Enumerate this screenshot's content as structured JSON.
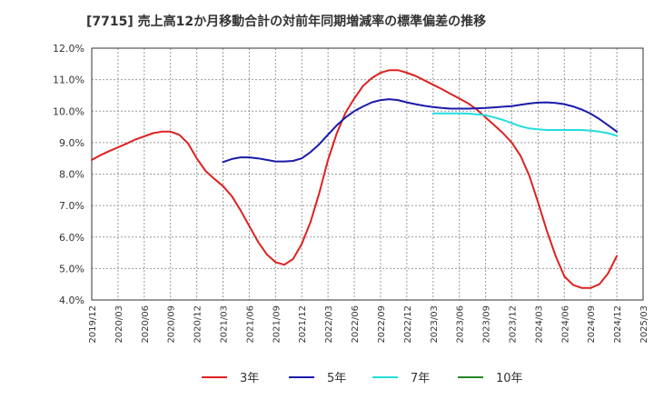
{
  "title": "[7715]  売上高12か月移動合計の対前年同期増減率の標準偏差の推移",
  "chart_data": {
    "type": "line",
    "title": "[7715]  売上高12か月移動合計の対前年同期増減率の標準偏差の推移",
    "xlabel": "",
    "ylabel": "",
    "ylim": [
      4.0,
      12.0
    ],
    "y_ticks": [
      "4.0%",
      "5.0%",
      "6.0%",
      "7.0%",
      "8.0%",
      "9.0%",
      "10.0%",
      "11.0%",
      "12.0%"
    ],
    "x_ticks": [
      "2019/12",
      "2020/03",
      "2020/06",
      "2020/09",
      "2020/12",
      "2021/03",
      "2021/06",
      "2021/09",
      "2021/12",
      "2022/03",
      "2022/06",
      "2022/09",
      "2022/12",
      "2023/03",
      "2023/06",
      "2023/09",
      "2023/12",
      "2024/03",
      "2024/06",
      "2024/09",
      "2024/12",
      "2025/03"
    ],
    "grid": true,
    "legend_position": "bottom",
    "series": [
      {
        "name": "3年",
        "color": "#dd2222",
        "points": [
          [
            "2019/12",
            8.45
          ],
          [
            "2020/01",
            8.6
          ],
          [
            "2020/02",
            8.73
          ],
          [
            "2020/03",
            8.85
          ],
          [
            "2020/04",
            8.97
          ],
          [
            "2020/05",
            9.1
          ],
          [
            "2020/06",
            9.2
          ],
          [
            "2020/07",
            9.3
          ],
          [
            "2020/08",
            9.35
          ],
          [
            "2020/09",
            9.35
          ],
          [
            "2020/10",
            9.25
          ],
          [
            "2020/11",
            8.98
          ],
          [
            "2020/12",
            8.5
          ],
          [
            "2021/01",
            8.1
          ],
          [
            "2021/02",
            7.85
          ],
          [
            "2021/03",
            7.62
          ],
          [
            "2021/04",
            7.3
          ],
          [
            "2021/05",
            6.85
          ],
          [
            "2021/06",
            6.35
          ],
          [
            "2021/07",
            5.85
          ],
          [
            "2021/08",
            5.45
          ],
          [
            "2021/09",
            5.2
          ],
          [
            "2021/10",
            5.12
          ],
          [
            "2021/11",
            5.3
          ],
          [
            "2021/12",
            5.78
          ],
          [
            "2022/01",
            6.48
          ],
          [
            "2022/02",
            7.4
          ],
          [
            "2022/03",
            8.45
          ],
          [
            "2022/04",
            9.3
          ],
          [
            "2022/05",
            9.95
          ],
          [
            "2022/06",
            10.4
          ],
          [
            "2022/07",
            10.8
          ],
          [
            "2022/08",
            11.05
          ],
          [
            "2022/09",
            11.22
          ],
          [
            "2022/10",
            11.3
          ],
          [
            "2022/11",
            11.3
          ],
          [
            "2022/12",
            11.22
          ],
          [
            "2023/01",
            11.12
          ],
          [
            "2023/02",
            10.98
          ],
          [
            "2023/03",
            10.84
          ],
          [
            "2023/04",
            10.7
          ],
          [
            "2023/05",
            10.55
          ],
          [
            "2023/06",
            10.4
          ],
          [
            "2023/07",
            10.25
          ],
          [
            "2023/08",
            10.05
          ],
          [
            "2023/09",
            9.8
          ],
          [
            "2023/10",
            9.55
          ],
          [
            "2023/11",
            9.3
          ],
          [
            "2023/12",
            9.0
          ],
          [
            "2024/01",
            8.58
          ],
          [
            "2024/02",
            7.95
          ],
          [
            "2024/03",
            7.1
          ],
          [
            "2024/04",
            6.2
          ],
          [
            "2024/05",
            5.4
          ],
          [
            "2024/06",
            4.75
          ],
          [
            "2024/07",
            4.48
          ],
          [
            "2024/08",
            4.38
          ],
          [
            "2024/09",
            4.38
          ],
          [
            "2024/10",
            4.5
          ],
          [
            "2024/11",
            4.85
          ],
          [
            "2024/12",
            5.4
          ]
        ]
      },
      {
        "name": "5年",
        "color": "#1a1aaa",
        "points": [
          [
            "2021/03",
            8.38
          ],
          [
            "2021/04",
            8.48
          ],
          [
            "2021/05",
            8.53
          ],
          [
            "2021/06",
            8.53
          ],
          [
            "2021/07",
            8.5
          ],
          [
            "2021/08",
            8.45
          ],
          [
            "2021/09",
            8.4
          ],
          [
            "2021/10",
            8.4
          ],
          [
            "2021/11",
            8.42
          ],
          [
            "2021/12",
            8.5
          ],
          [
            "2022/01",
            8.7
          ],
          [
            "2022/02",
            8.95
          ],
          [
            "2022/03",
            9.25
          ],
          [
            "2022/04",
            9.55
          ],
          [
            "2022/05",
            9.8
          ],
          [
            "2022/06",
            10.0
          ],
          [
            "2022/07",
            10.15
          ],
          [
            "2022/08",
            10.28
          ],
          [
            "2022/09",
            10.35
          ],
          [
            "2022/10",
            10.38
          ],
          [
            "2022/11",
            10.35
          ],
          [
            "2022/12",
            10.28
          ],
          [
            "2023/01",
            10.22
          ],
          [
            "2023/02",
            10.17
          ],
          [
            "2023/03",
            10.13
          ],
          [
            "2023/04",
            10.1
          ],
          [
            "2023/05",
            10.08
          ],
          [
            "2023/06",
            10.08
          ],
          [
            "2023/07",
            10.08
          ],
          [
            "2023/08",
            10.09
          ],
          [
            "2023/09",
            10.1
          ],
          [
            "2023/10",
            10.12
          ],
          [
            "2023/11",
            10.14
          ],
          [
            "2023/12",
            10.16
          ],
          [
            "2024/01",
            10.2
          ],
          [
            "2024/02",
            10.24
          ],
          [
            "2024/03",
            10.27
          ],
          [
            "2024/04",
            10.28
          ],
          [
            "2024/05",
            10.26
          ],
          [
            "2024/06",
            10.22
          ],
          [
            "2024/07",
            10.15
          ],
          [
            "2024/08",
            10.05
          ],
          [
            "2024/09",
            9.92
          ],
          [
            "2024/10",
            9.75
          ],
          [
            "2024/11",
            9.55
          ],
          [
            "2024/12",
            9.35
          ]
        ]
      },
      {
        "name": "7年",
        "color": "#22dddd",
        "points": [
          [
            "2023/03",
            9.93
          ],
          [
            "2023/04",
            9.93
          ],
          [
            "2023/05",
            9.93
          ],
          [
            "2023/06",
            9.93
          ],
          [
            "2023/07",
            9.92
          ],
          [
            "2023/08",
            9.9
          ],
          [
            "2023/09",
            9.87
          ],
          [
            "2023/10",
            9.8
          ],
          [
            "2023/11",
            9.72
          ],
          [
            "2023/12",
            9.62
          ],
          [
            "2024/01",
            9.52
          ],
          [
            "2024/02",
            9.45
          ],
          [
            "2024/03",
            9.42
          ],
          [
            "2024/04",
            9.4
          ],
          [
            "2024/05",
            9.4
          ],
          [
            "2024/06",
            9.4
          ],
          [
            "2024/07",
            9.4
          ],
          [
            "2024/08",
            9.4
          ],
          [
            "2024/09",
            9.38
          ],
          [
            "2024/10",
            9.35
          ],
          [
            "2024/11",
            9.3
          ],
          [
            "2024/12",
            9.22
          ]
        ]
      },
      {
        "name": "10年",
        "color": "#228822",
        "points": []
      }
    ]
  }
}
